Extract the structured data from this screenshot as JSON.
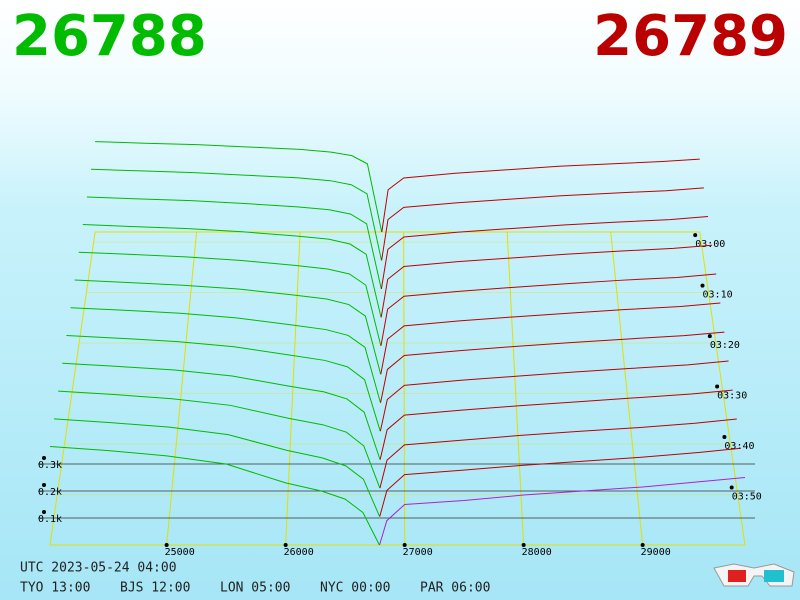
{
  "chart_data": {
    "type": "depth3d",
    "bid_price": 26788,
    "ask_price": 26789,
    "bid_color": "#00bb00",
    "ask_color": "#bb0000",
    "xlim": [
      24020,
      29860
    ],
    "xticks": [
      25000,
      26000,
      27000,
      28000,
      29000
    ],
    "yticks": [
      {
        "value": 100,
        "label": "0.1k"
      },
      {
        "value": 200,
        "label": "0.2k"
      },
      {
        "value": 300,
        "label": "0.3k"
      }
    ],
    "tlim": [
      "02:58",
      "04:00"
    ],
    "tticks": [
      "03:00",
      "03:10",
      "03:20",
      "03:30",
      "03:40",
      "03:50"
    ],
    "series": [
      {
        "color": "#00bb00",
        "x": [
          24020,
          24500,
          25000,
          25500,
          26000,
          26300,
          26500,
          26650,
          26788
        ],
        "values": [
          [
            385,
            378,
            372,
            362,
            352,
            340,
            325,
            290,
            0
          ],
          [
            383,
            376,
            369,
            358,
            347,
            335,
            318,
            280,
            0
          ],
          [
            381,
            373,
            366,
            354,
            340,
            328,
            310,
            270,
            0
          ],
          [
            380,
            371,
            363,
            350,
            333,
            320,
            300,
            258,
            0
          ],
          [
            378,
            369,
            359,
            345,
            325,
            310,
            290,
            245,
            0
          ],
          [
            376,
            366,
            355,
            340,
            316,
            300,
            278,
            232,
            0
          ],
          [
            374,
            364,
            352,
            334,
            306,
            288,
            265,
            218,
            0
          ],
          [
            372,
            361,
            348,
            328,
            295,
            275,
            250,
            200,
            0
          ],
          [
            370,
            358,
            344,
            321,
            282,
            260,
            233,
            182,
            0
          ],
          [
            368,
            355,
            339,
            314,
            265,
            240,
            212,
            160,
            0
          ],
          [
            366,
            352,
            335,
            307,
            248,
            220,
            190,
            140,
            0
          ],
          [
            365,
            350,
            330,
            300,
            230,
            200,
            170,
            120,
            0
          ]
        ]
      },
      {
        "color": "#bb0000",
        "x": [
          26789,
          26850,
          27000,
          27500,
          28000,
          28500,
          29000,
          29500,
          29860
        ],
        "values": [
          [
            0,
            180,
            230,
            250,
            265,
            280,
            290,
            300,
            310
          ],
          [
            0,
            172,
            223,
            242,
            257,
            272,
            283,
            293,
            305
          ],
          [
            0,
            164,
            215,
            235,
            250,
            265,
            277,
            287,
            300
          ],
          [
            0,
            156,
            208,
            228,
            243,
            258,
            271,
            282,
            295
          ],
          [
            0,
            148,
            200,
            220,
            236,
            251,
            265,
            276,
            290
          ],
          [
            0,
            140,
            193,
            213,
            229,
            244,
            258,
            270,
            284
          ],
          [
            0,
            131,
            186,
            205,
            222,
            237,
            251,
            264,
            278
          ],
          [
            0,
            123,
            178,
            198,
            214,
            230,
            244,
            258,
            273
          ],
          [
            0,
            115,
            171,
            190,
            207,
            222,
            237,
            252,
            267
          ],
          [
            0,
            106,
            164,
            182,
            200,
            215,
            229,
            246,
            262
          ],
          [
            0,
            98,
            157,
            174,
            192,
            207,
            222,
            240,
            256
          ],
          [
            0,
            90,
            150,
            165,
            185,
            200,
            215,
            235,
            250
          ]
        ]
      }
    ]
  },
  "footer": {
    "utc": "UTC 2023-05-24 04:00",
    "clocks": [
      "TYO 13:00",
      "BJS 12:00",
      "LON 05:00",
      "NYC 00:00",
      "PAR 06:00"
    ]
  }
}
